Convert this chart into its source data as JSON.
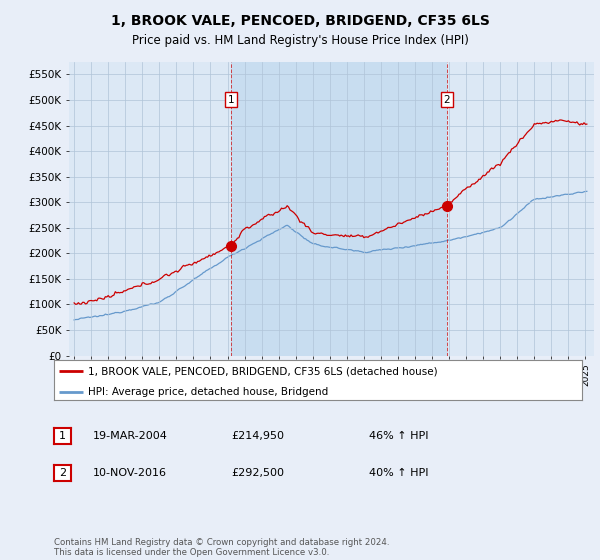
{
  "title": "1, BROOK VALE, PENCOED, BRIDGEND, CF35 6LS",
  "subtitle": "Price paid vs. HM Land Registry's House Price Index (HPI)",
  "title_fontsize": 10,
  "subtitle_fontsize": 8.5,
  "ylabel_ticks": [
    "£0",
    "£50K",
    "£100K",
    "£150K",
    "£200K",
    "£250K",
    "£300K",
    "£350K",
    "£400K",
    "£450K",
    "£500K",
    "£550K"
  ],
  "ytick_values": [
    0,
    50000,
    100000,
    150000,
    200000,
    250000,
    300000,
    350000,
    400000,
    450000,
    500000,
    550000
  ],
  "ylim": [
    0,
    575000
  ],
  "xlim_start": 1994.7,
  "xlim_end": 2025.5,
  "background_color": "#e8eef8",
  "plot_bg_color": "#dce8f5",
  "shaded_bg_color": "#c8ddf0",
  "grid_color": "#b0c4d8",
  "red_color": "#cc0000",
  "blue_color": "#6699cc",
  "marker1_x": 2004.21,
  "marker1_y": 214950,
  "marker2_x": 2016.87,
  "marker2_y": 292500,
  "legend_label_red": "1, BROOK VALE, PENCOED, BRIDGEND, CF35 6LS (detached house)",
  "legend_label_blue": "HPI: Average price, detached house, Bridgend",
  "transaction1_num": "1",
  "transaction1_date": "19-MAR-2004",
  "transaction1_price": "£214,950",
  "transaction1_hpi": "46% ↑ HPI",
  "transaction2_num": "2",
  "transaction2_date": "10-NOV-2016",
  "transaction2_price": "£292,500",
  "transaction2_hpi": "40% ↑ HPI",
  "footer": "Contains HM Land Registry data © Crown copyright and database right 2024.\nThis data is licensed under the Open Government Licence v3.0.",
  "xtick_years": [
    1995,
    1996,
    1997,
    1998,
    1999,
    2000,
    2001,
    2002,
    2003,
    2004,
    2005,
    2006,
    2007,
    2008,
    2009,
    2010,
    2011,
    2012,
    2013,
    2014,
    2015,
    2016,
    2017,
    2018,
    2019,
    2020,
    2021,
    2022,
    2023,
    2024,
    2025
  ]
}
